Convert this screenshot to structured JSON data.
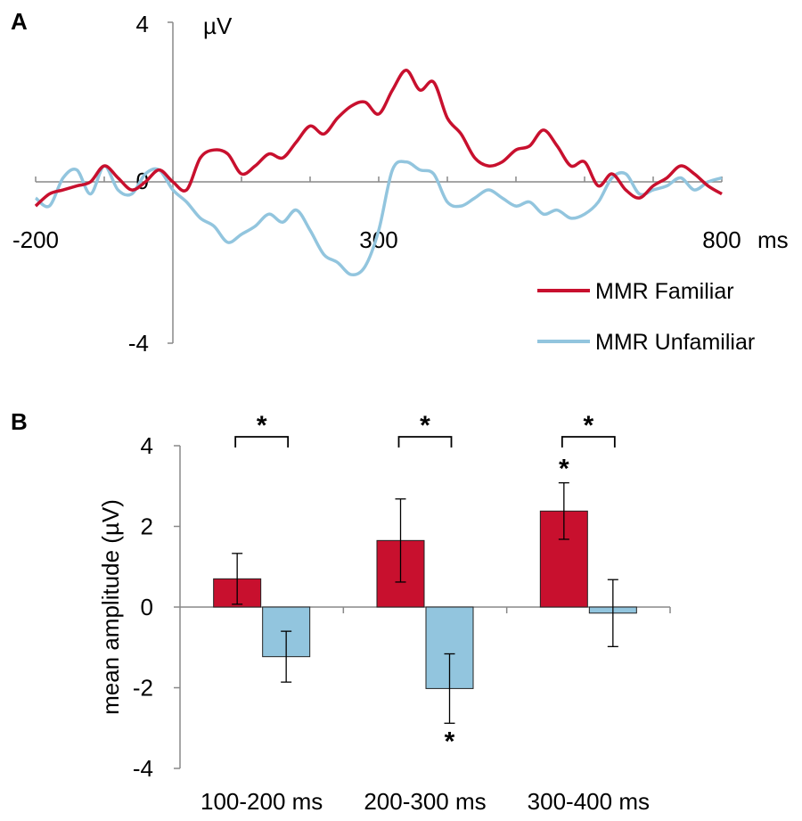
{
  "chart_data": [
    {
      "panel": "A",
      "type": "line",
      "xunit": "ms",
      "yunit": "µV",
      "xlim": [
        -200,
        800
      ],
      "ylim": [
        -4,
        4
      ],
      "x_tick_labels": [
        "-200",
        "300",
        "800"
      ],
      "y_tick_labels": [
        "4",
        "0",
        "-4"
      ],
      "x": [
        -200,
        -180,
        -160,
        -140,
        -120,
        -100,
        -80,
        -60,
        -40,
        -20,
        0,
        20,
        40,
        60,
        80,
        100,
        120,
        140,
        160,
        180,
        200,
        220,
        240,
        260,
        280,
        300,
        320,
        340,
        360,
        380,
        400,
        420,
        440,
        460,
        480,
        500,
        520,
        540,
        560,
        580,
        600,
        620,
        640,
        660,
        680,
        700,
        720,
        740,
        760,
        780,
        800
      ],
      "series": [
        {
          "name": "MMR Familiar",
          "color": "#c8102e",
          "values": [
            -0.6,
            -0.3,
            -0.2,
            -0.1,
            0.0,
            0.4,
            0.1,
            -0.2,
            0.0,
            0.3,
            0.0,
            -0.2,
            0.6,
            0.8,
            0.7,
            0.2,
            0.4,
            0.7,
            0.6,
            1.0,
            1.4,
            1.2,
            1.6,
            1.9,
            2.0,
            1.7,
            2.3,
            2.8,
            2.3,
            2.5,
            1.6,
            1.2,
            0.6,
            0.4,
            0.5,
            0.8,
            0.9,
            1.3,
            0.9,
            0.4,
            0.5,
            -0.1,
            0.2,
            -0.2,
            -0.4,
            -0.1,
            0.1,
            0.4,
            0.2,
            -0.1,
            -0.3
          ]
        },
        {
          "name": "MMR Unfamiliar",
          "color": "#92c5de",
          "values": [
            -0.4,
            -0.6,
            0.1,
            0.3,
            -0.3,
            0.4,
            -0.2,
            -0.3,
            0.2,
            0.3,
            -0.2,
            -0.5,
            -0.9,
            -1.1,
            -1.5,
            -1.3,
            -1.1,
            -0.8,
            -1.0,
            -0.7,
            -1.2,
            -1.8,
            -2.0,
            -2.3,
            -2.1,
            -1.2,
            0.3,
            0.5,
            0.3,
            0.2,
            -0.5,
            -0.6,
            -0.4,
            -0.2,
            -0.4,
            -0.6,
            -0.5,
            -0.8,
            -0.7,
            -0.9,
            -0.8,
            -0.5,
            0.1,
            0.2,
            -0.3,
            -0.2,
            -0.1,
            0.1,
            -0.2,
            0.0,
            0.1
          ]
        }
      ],
      "legend_position": "bottom-right"
    },
    {
      "panel": "B",
      "type": "bar",
      "ylabel": "mean amplitude (µV)",
      "ylim": [
        -4,
        4
      ],
      "y_tick_labels": [
        "4",
        "2",
        "0",
        "-2",
        "-4"
      ],
      "categories": [
        "100-200 ms",
        "200-300 ms",
        "300-400 ms"
      ],
      "series": [
        {
          "name": "MMR Familiar",
          "color": "#c8102e",
          "values": [
            0.7,
            1.65,
            2.38
          ],
          "errors": [
            0.63,
            1.03,
            0.7
          ]
        },
        {
          "name": "MMR Unfamiliar",
          "color": "#92c5de",
          "values": [
            -1.23,
            -2.02,
            -0.15
          ],
          "errors": [
            0.63,
            0.86,
            0.83
          ]
        }
      ],
      "pair_significance_marker": "*",
      "bar_significance_markers": [
        {
          "category": "300-400 ms",
          "series": "MMR Familiar",
          "marker": "*"
        },
        {
          "category": "200-300 ms",
          "series": "MMR Unfamiliar",
          "marker": "*"
        }
      ]
    }
  ],
  "labels": {
    "panel_a": "A",
    "panel_b": "B"
  }
}
